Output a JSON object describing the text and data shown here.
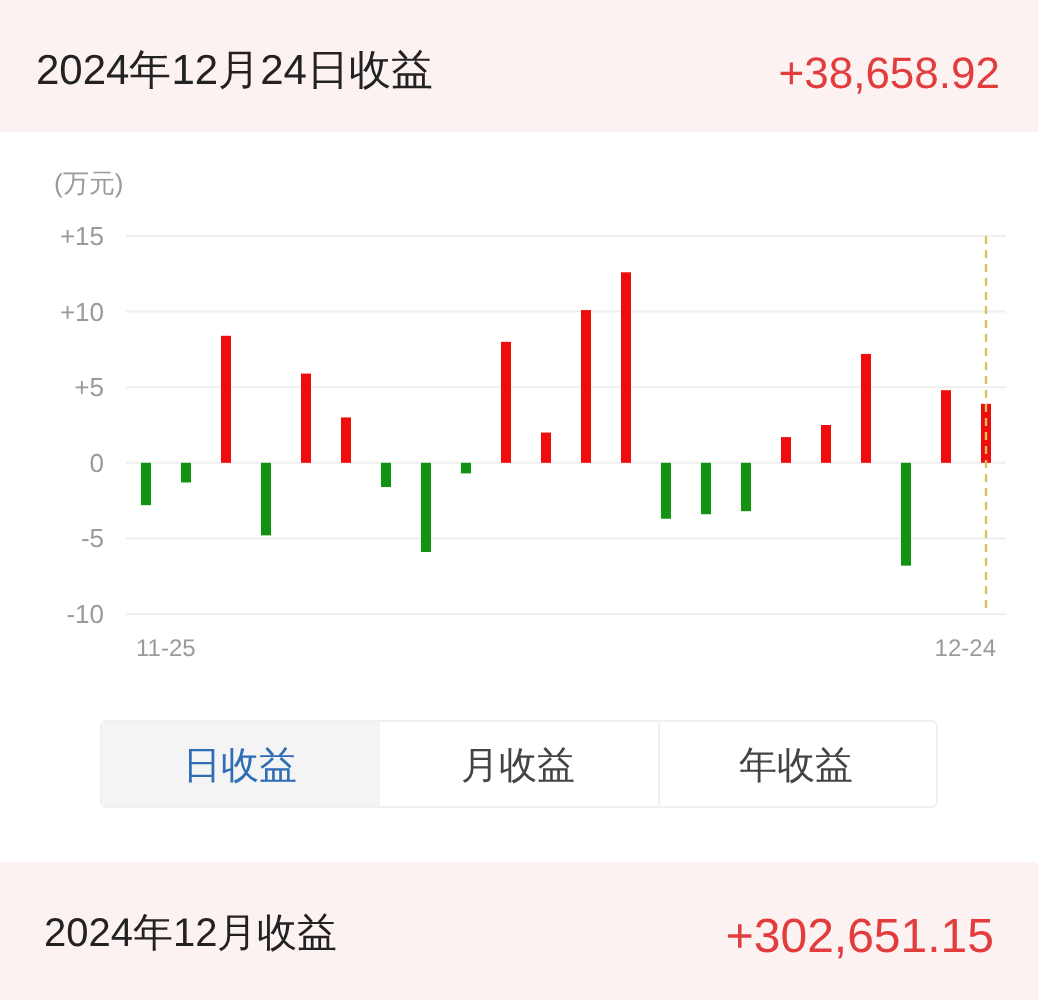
{
  "chart_data": {
    "type": "bar",
    "title": "2024年12月24日收益",
    "ylabel": "(万元)",
    "categories": [
      "11-25",
      null,
      null,
      null,
      null,
      null,
      null,
      null,
      null,
      null,
      null,
      null,
      null,
      null,
      null,
      null,
      null,
      null,
      null,
      null,
      null,
      "12-24"
    ],
    "values": [
      -2.8,
      -1.3,
      8.4,
      -4.8,
      5.9,
      3.0,
      -1.6,
      -5.9,
      -0.7,
      8.0,
      2.0,
      10.1,
      12.6,
      -3.7,
      -3.4,
      -3.2,
      1.7,
      2.5,
      7.2,
      -6.8,
      4.8,
      3.9
    ],
    "colors": [
      "#129212",
      "#129212",
      "#ee0c0c",
      "#129212",
      "#ee0c0c",
      "#ee0c0c",
      "#129212",
      "#129212",
      "#129212",
      "#ee0c0c",
      "#ee0c0c",
      "#ee0c0c",
      "#ee0c0c",
      "#129212",
      "#129212",
      "#129212",
      "#ee0c0c",
      "#ee0c0c",
      "#ee0c0c",
      "#129212",
      "#ee0c0c",
      "#ee0c0c"
    ],
    "ylim": [
      -10,
      15
    ],
    "yticks": [
      -10,
      -5,
      0,
      {
        "value": 5,
        "label": "+5"
      },
      {
        "value": 10,
        "label": "+10"
      },
      {
        "value": 15,
        "label": "+15"
      }
    ],
    "grid": "y",
    "ref_lines": [
      {
        "axis": "x",
        "value": "12-24",
        "color": "#dcc060",
        "line_style": "dashed"
      }
    ],
    "annotations": [
      "+38,658.92",
      "日收益",
      "月收益",
      "年收益",
      "2024年12月收益",
      "+302,651.15"
    ]
  }
}
